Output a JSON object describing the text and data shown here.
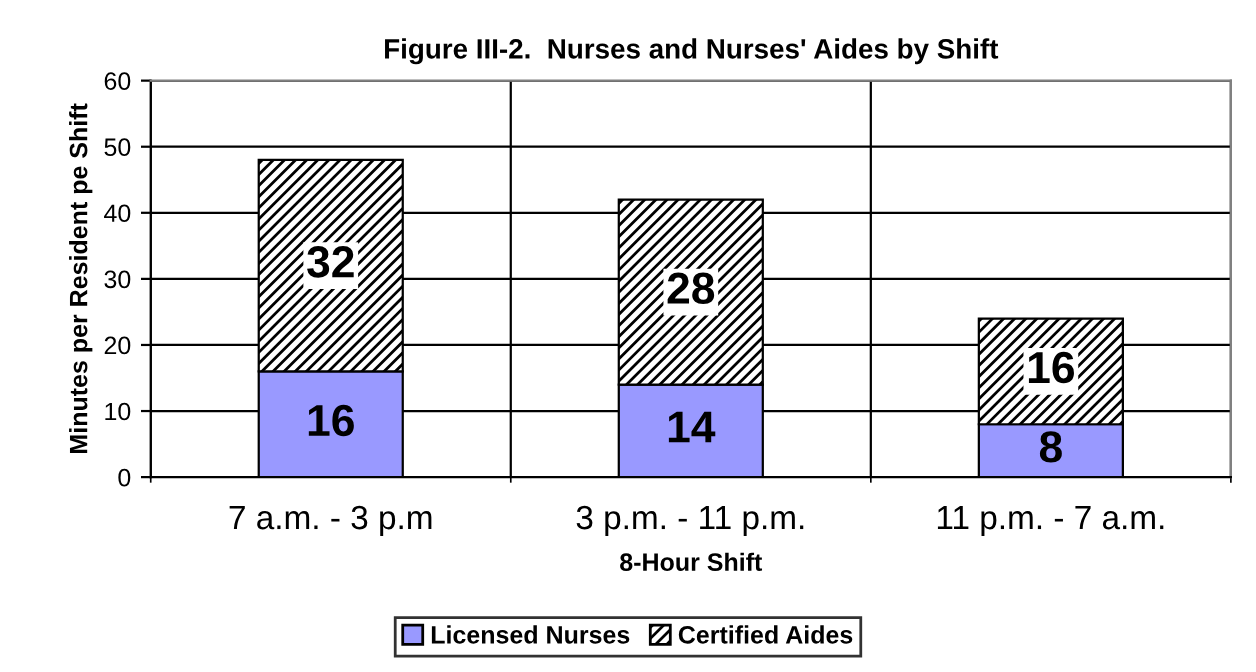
{
  "chart_data": {
    "type": "bar",
    "title": "Figure III-2.  Nurses and Nurses' Aides by Shift",
    "categories": [
      "7 a.m. - 3 p.m",
      "3 p.m. - 11 p.m.",
      "11 p.m. - 7 a.m."
    ],
    "series": [
      {
        "name": "Licensed Nurses",
        "color": "#9999ff",
        "values": [
          16,
          14,
          8
        ]
      },
      {
        "name": "Certified Aides",
        "color": "#000000",
        "values": [
          32,
          28,
          16
        ]
      }
    ],
    "stacked": true,
    "data_labels": true,
    "xlabel": "8-Hour Shift",
    "ylabel": "Minutes per Resident pe Shift",
    "ylim": [
      0,
      60
    ],
    "yticks": [
      0,
      10,
      20,
      30,
      40,
      50,
      60
    ],
    "grid": true,
    "legend": "bottom"
  }
}
